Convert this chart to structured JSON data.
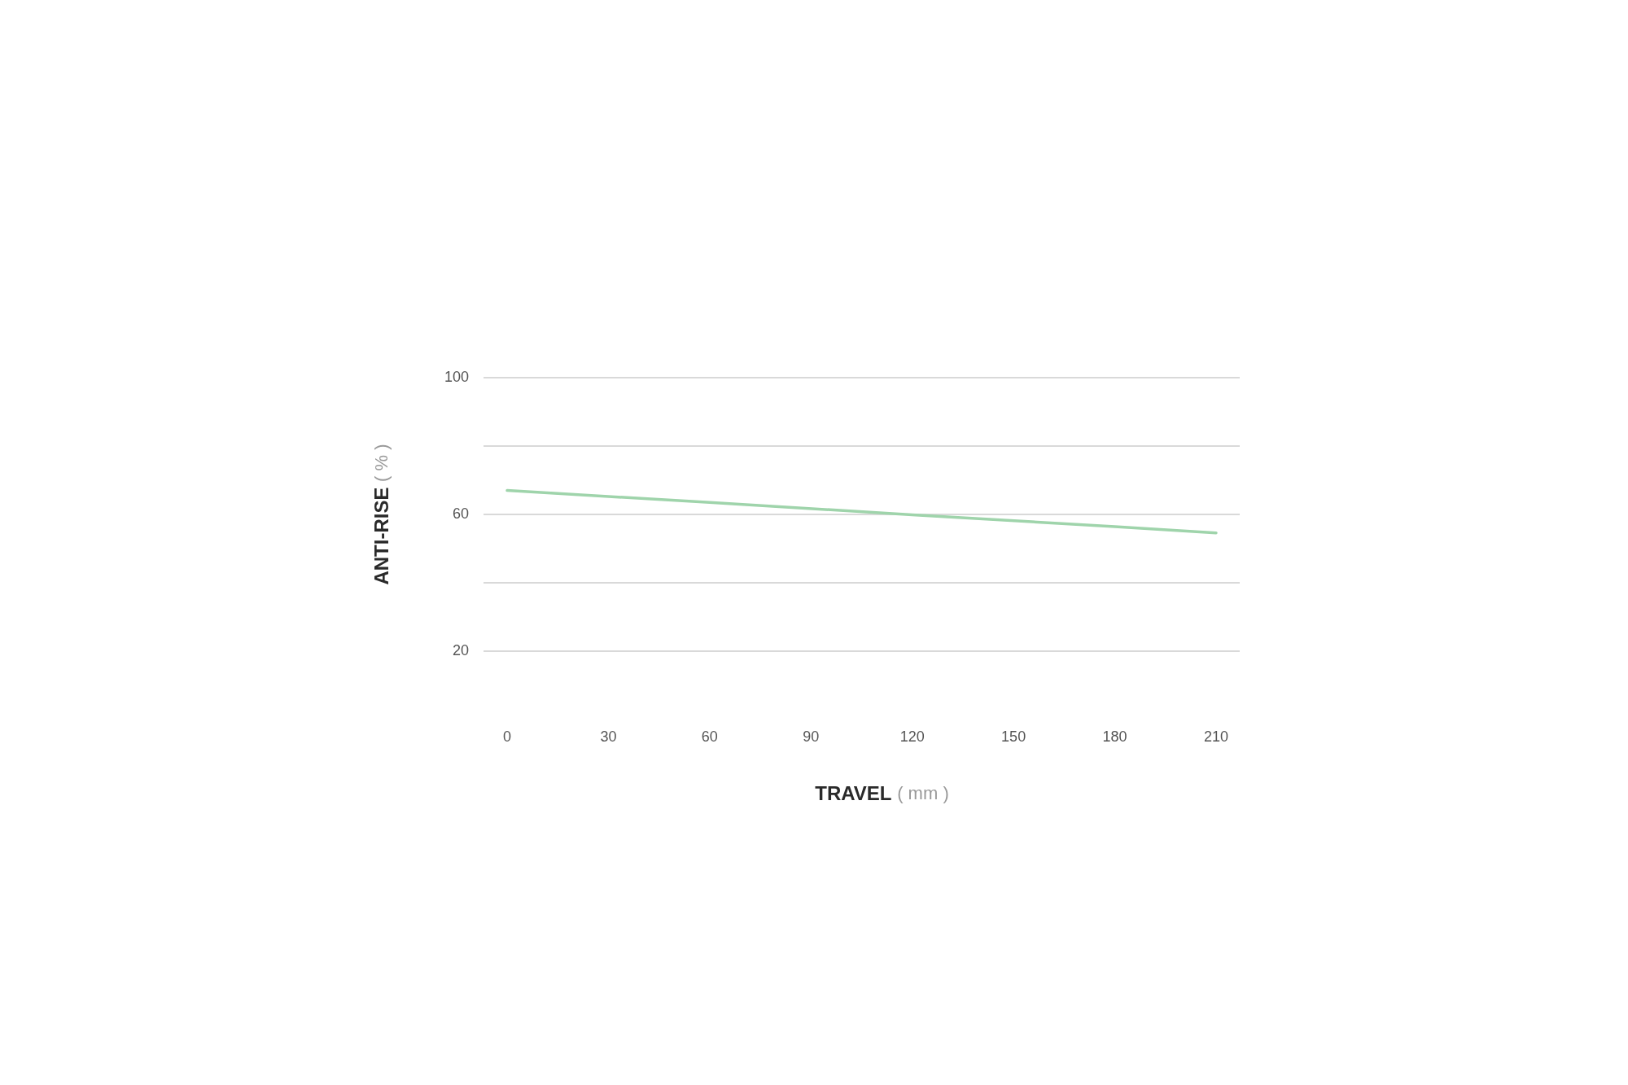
{
  "chart_data": {
    "type": "line",
    "xlabel": "TRAVEL ( mm )",
    "ylabel": "ANTI-RISE ( % )",
    "x": [
      0,
      60,
      120,
      180,
      210
    ],
    "series": [
      {
        "color": "#9fd4ab",
        "values": [
          67,
          63.5,
          59.9,
          56.4,
          54.6
        ]
      }
    ],
    "xlim": [
      -7,
      217
    ],
    "xticks": [
      0,
      30,
      60,
      90,
      120,
      150,
      180,
      210
    ],
    "ylim": [
      20,
      100
    ],
    "yticks": [
      20,
      {
        "value": 40,
        "label": null
      },
      60,
      {
        "value": 80,
        "label": null
      },
      100
    ],
    "grid": "y"
  }
}
